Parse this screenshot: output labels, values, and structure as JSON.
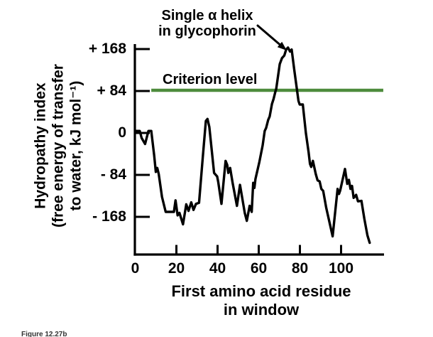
{
  "caption": "Figure 12.27b",
  "colors": {
    "curve": "#000000",
    "axis": "#000000",
    "criterion": "#4d8b3c",
    "text": "#000000"
  },
  "chart_data": {
    "type": "line",
    "title": "",
    "xlabel_lines": [
      "First amino acid residue",
      "in window"
    ],
    "ylabel_lines": [
      "Hydropathy index",
      "(free energy of transfer",
      "to water, kJ mol⁻¹)"
    ],
    "xlabel": "First amino acid residue in window",
    "ylabel": "Hydropathy index (free energy of transfer to water, kJ mol⁻¹)",
    "x_ticks": {
      "values": [
        0,
        20,
        40,
        60,
        80,
        100
      ],
      "labels": [
        "0",
        "20",
        "40",
        "60",
        "80",
        "100"
      ]
    },
    "y_ticks": {
      "values": [
        168,
        84,
        0,
        -84,
        -168
      ],
      "labels": [
        "+ 168",
        "+ 84",
        "0",
        "- 84",
        "- 168"
      ]
    },
    "xlim": [
      0,
      121
    ],
    "ylim": [
      -243,
      178
    ],
    "grid": false,
    "legend": "none",
    "criterion_line": {
      "label": "Criterion level",
      "value": 84,
      "color": "#4d8b3c",
      "x_start": 7.8,
      "x_end": 120.5
    },
    "annotation": {
      "lines": [
        "Single α helix",
        "in glycophorin"
      ],
      "points_to_x": 74,
      "points_to_y": 171
    },
    "series": [
      {
        "name": "glycophorin hydropathy",
        "points": [
          [
            0,
            4
          ],
          [
            2.2,
            4
          ],
          [
            3.1,
            -10
          ],
          [
            4.8,
            -22
          ],
          [
            6.4,
            4
          ],
          [
            7.8,
            4
          ],
          [
            9.2,
            -45
          ],
          [
            10,
            -78
          ],
          [
            10.7,
            -70
          ],
          [
            11.4,
            -82
          ],
          [
            13,
            -128
          ],
          [
            14.8,
            -158
          ],
          [
            18.8,
            -158
          ],
          [
            19.6,
            -135
          ],
          [
            20.6,
            -165
          ],
          [
            21.5,
            -160
          ],
          [
            23.2,
            -183
          ],
          [
            24.8,
            -143
          ],
          [
            25.9,
            -156
          ],
          [
            27.2,
            -139
          ],
          [
            28.3,
            -154
          ],
          [
            29.5,
            -142
          ],
          [
            31,
            -140
          ],
          [
            32.8,
            -50
          ],
          [
            34.3,
            24
          ],
          [
            35.1,
            28
          ],
          [
            36,
            12
          ],
          [
            38.3,
            -80
          ],
          [
            39.8,
            -87
          ],
          [
            40.3,
            -98
          ],
          [
            41.9,
            -142
          ],
          [
            43.9,
            -56
          ],
          [
            44.7,
            -64
          ],
          [
            45.2,
            -80
          ],
          [
            46.1,
            -70
          ],
          [
            47.3,
            -100
          ],
          [
            49.4,
            -146
          ],
          [
            50.9,
            -104
          ],
          [
            53.2,
            -160
          ],
          [
            54.2,
            -176
          ],
          [
            55.6,
            -146
          ],
          [
            56.6,
            -158
          ],
          [
            57.3,
            -100
          ],
          [
            57.9,
            -110
          ],
          [
            58.4,
            -92
          ],
          [
            60.3,
            -58
          ],
          [
            61.9,
            -25
          ],
          [
            62.9,
            4
          ],
          [
            63.6,
            10
          ],
          [
            64.6,
            26
          ],
          [
            65.3,
            33
          ],
          [
            66.4,
            58
          ],
          [
            67.2,
            68
          ],
          [
            68.1,
            83
          ],
          [
            68.5,
            88
          ],
          [
            70.2,
            138
          ],
          [
            71.3,
            150
          ],
          [
            72.4,
            155
          ],
          [
            73.3,
            167
          ],
          [
            74.2,
            171
          ],
          [
            75.2,
            163
          ],
          [
            76,
            167
          ],
          [
            77.2,
            128
          ],
          [
            79.3,
            64
          ],
          [
            79.9,
            57
          ],
          [
            81.4,
            57
          ],
          [
            82.9,
            0
          ],
          [
            84.2,
            -38
          ],
          [
            84.9,
            -62
          ],
          [
            85.5,
            -68
          ],
          [
            86.3,
            -56
          ],
          [
            87.7,
            -82
          ],
          [
            88.6,
            -95
          ],
          [
            89.6,
            -97
          ],
          [
            90.4,
            -112
          ],
          [
            91.3,
            -116
          ],
          [
            92.8,
            -150
          ],
          [
            95.9,
            -207
          ],
          [
            98.3,
            -112
          ],
          [
            99,
            -122
          ],
          [
            99.6,
            -115
          ],
          [
            101.9,
            -72
          ],
          [
            103,
            -102
          ],
          [
            103.8,
            -94
          ],
          [
            104.6,
            -112
          ],
          [
            105.3,
            -106
          ],
          [
            106.1,
            -130
          ],
          [
            107.3,
            -124
          ],
          [
            108.2,
            -137
          ],
          [
            109.9,
            -136
          ],
          [
            111.3,
            -172
          ],
          [
            112.8,
            -205
          ],
          [
            113.9,
            -220
          ]
        ]
      }
    ]
  }
}
